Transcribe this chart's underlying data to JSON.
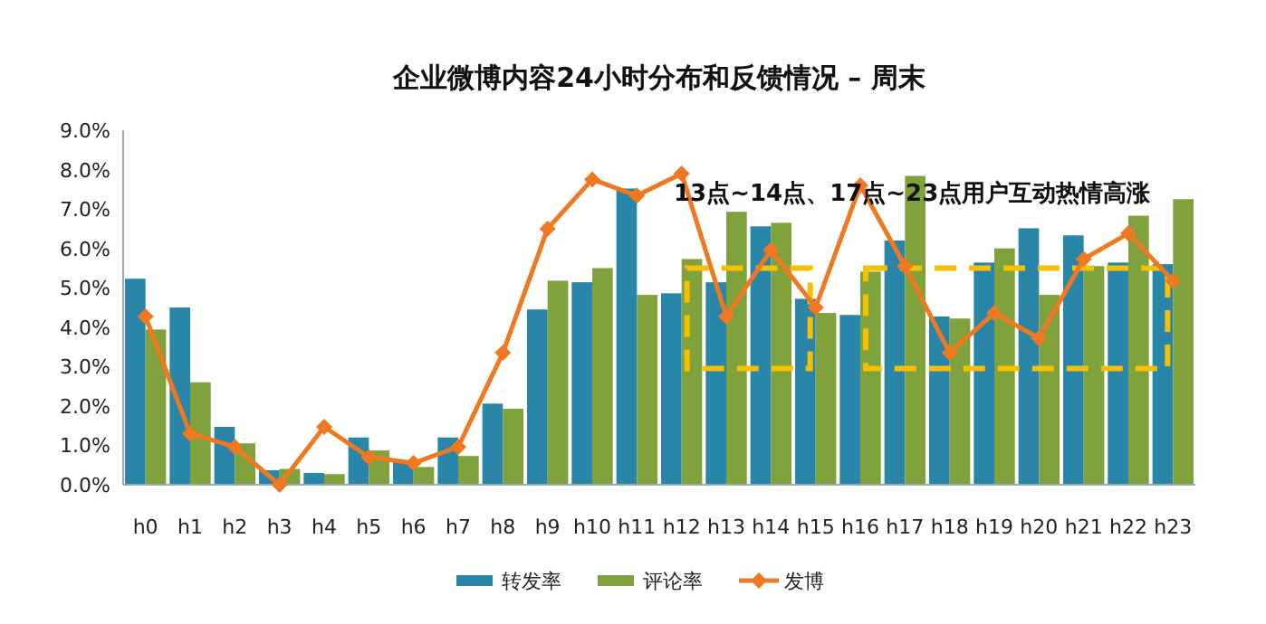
{
  "chart_data": {
    "type": "bar",
    "title": "企业微博内容24小时分布和反馈情况 – 周末",
    "categories": [
      "h0",
      "h1",
      "h2",
      "h3",
      "h4",
      "h5",
      "h6",
      "h7",
      "h8",
      "h9",
      "h10",
      "h11",
      "h12",
      "h13",
      "h14",
      "h15",
      "h16",
      "h17",
      "h18",
      "h19",
      "h20",
      "h21",
      "h22",
      "h23"
    ],
    "series": [
      {
        "name": "转发率",
        "color": "#2a86a8",
        "values": [
          5.23,
          4.5,
          1.47,
          0.37,
          0.3,
          1.2,
          0.6,
          1.2,
          2.06,
          4.45,
          5.14,
          7.52,
          4.86,
          5.14,
          6.56,
          4.72,
          4.31,
          6.2,
          4.27,
          5.64,
          6.51,
          6.33,
          5.64,
          5.6
        ]
      },
      {
        "name": "评论率",
        "color": "#7fa23c",
        "values": [
          3.94,
          2.6,
          1.05,
          0.4,
          0.27,
          0.87,
          0.45,
          0.73,
          1.93,
          5.18,
          5.5,
          4.82,
          5.73,
          6.93,
          6.65,
          4.36,
          5.41,
          7.84,
          4.22,
          6.0,
          4.82,
          5.55,
          6.83,
          7.25
        ]
      },
      {
        "name": "发博",
        "type": "line",
        "color": "#f07820",
        "marker": "diamond",
        "values": [
          4.27,
          1.3,
          0.96,
          0,
          1.47,
          0.7,
          0.55,
          0.96,
          3.35,
          6.5,
          7.75,
          7.34,
          7.9,
          4.27,
          5.96,
          4.5,
          7.6,
          5.55,
          3.35,
          4.36,
          3.72,
          5.73,
          6.38,
          5.18
        ]
      }
    ],
    "ylim": [
      0,
      9
    ],
    "yticks": [
      {
        "value": 0,
        "label": "0.0%"
      },
      {
        "value": 1,
        "label": "1.0%"
      },
      {
        "value": 2,
        "label": "2.0%"
      },
      {
        "value": 3,
        "label": "3.0%"
      },
      {
        "value": 4,
        "label": "4.0%"
      },
      {
        "value": 5,
        "label": "5.0%"
      },
      {
        "value": 6,
        "label": "6.0%"
      },
      {
        "value": 7,
        "label": "7.0%"
      },
      {
        "value": 8,
        "label": "8.0%"
      },
      {
        "value": 9,
        "label": "9.0%"
      }
    ],
    "annotations": [
      "13点~14点、17点~23点用户互动热情高涨"
    ],
    "grid": false,
    "legend": "bottom"
  }
}
